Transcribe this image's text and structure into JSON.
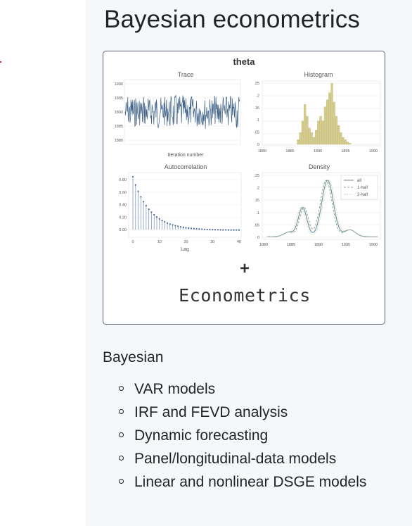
{
  "page": {
    "title": "Bayesian econometrics"
  },
  "figure": {
    "main_title": "theta",
    "trace": {
      "title": "Trace",
      "xlabel": "Iteration number",
      "y_ticks": [
        "1900",
        "1895",
        "1890",
        "1885",
        "1880"
      ]
    },
    "histogram": {
      "title": "Histogram",
      "x_ticks": [
        "1880",
        "1885",
        "1890",
        "1895",
        "1900"
      ],
      "y_ticks": [
        ".25",
        ".2",
        ".15",
        ".1",
        ".05",
        "0"
      ]
    },
    "autocorrelation": {
      "title": "Autocorrelation",
      "xlabel": "Lag",
      "x_ticks": [
        "0",
        "10",
        "20",
        "30",
        "40"
      ],
      "y_ticks": [
        "0.80",
        "0.60",
        "0.40",
        "0.20",
        "0.00"
      ]
    },
    "density": {
      "title": "Density",
      "x_ticks": [
        "1880",
        "1885",
        "1890",
        "1895",
        "1900"
      ],
      "y_ticks": [
        ".25",
        ".2",
        ".15",
        ".1",
        ".05",
        "0"
      ],
      "legend": [
        "all",
        "1-half",
        "2-half"
      ]
    },
    "plus_sign": "+",
    "caption": "Econometrics"
  },
  "section": {
    "title": "Bayesian",
    "items": [
      "VAR models",
      "IRF and FEVD analysis",
      "Dynamic forecasting",
      "Panel/longitudinal-data models",
      "Linear and nonlinear DSGE models"
    ]
  },
  "colors": {
    "trace_line": "#3d5f85",
    "histogram_bar": "#d5cc8e",
    "acf_line": "#7f9bbd",
    "density_all": "#6b8fa4",
    "density_half1": "#8aa98a",
    "density_half2": "#b9c9a4"
  }
}
